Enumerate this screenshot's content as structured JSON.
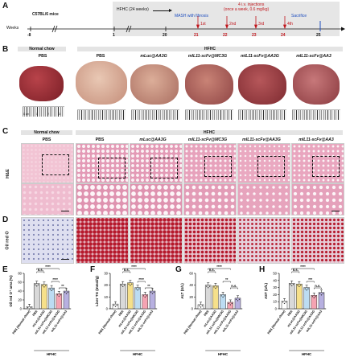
{
  "panels": {
    "a": "A",
    "b": "B",
    "c": "C",
    "d": "D",
    "e": "E",
    "f": "F",
    "g": "G",
    "h": "H"
  },
  "timeline": {
    "weeks_label": "Weeks",
    "strain": "C57BL/6 mice",
    "hfhc": "HFHC (24 weeks)",
    "injection_title": "4 i.v. injections",
    "injection_sub": "(once a week, 0.6 mg/kg)",
    "mash": "MASH with fibrosis",
    "sacrifice": "Sacrifice",
    "ticks": [
      "-8",
      "1",
      "20",
      "21",
      "22",
      "23",
      "24",
      "25"
    ],
    "doses": [
      "1st",
      "2nd",
      "3rd",
      "4th"
    ]
  },
  "groups": {
    "normal_chow": "Normal chow",
    "hfhc": "HFHC",
    "pbs": "PBS",
    "mluc": "mLuc@AA3G",
    "mc3g": "mIL11-scFv@MC3G",
    "aa3g": "mIL11-scFv@AA3G",
    "aa3": "mIL11-scFv@AA3"
  },
  "rows": {
    "he": "H&E",
    "oro": "Oil red O"
  },
  "ruler": {
    "units": [
      "0 cm",
      "1",
      "2",
      "3"
    ]
  },
  "colors": {
    "accent_red": "#c0161c",
    "accent_blue": "#1f4fbf",
    "bar_white": "#ffffff",
    "bar_gray": "#d9d9d9",
    "bar_yellow": "#f6e08a",
    "bar_lightblue": "#bcdcf2",
    "bar_pink": "#f5a3b2",
    "bar_purple": "#b7b0e0"
  },
  "chart_data": [
    {
      "type": "bar",
      "panel": "E",
      "ylabel": "Oil red O⁺ area (%)",
      "ylim": [
        0,
        80
      ],
      "yticks": [
        "0",
        "20",
        "40",
        "60",
        "80"
      ],
      "categories": [
        "PBS (Normal chow)",
        "PBS",
        "mLuc@AA3G",
        "mIL11-scFv@MC3G",
        "mIL11-scFv@AA3G",
        "mIL11-scFv@AA3"
      ],
      "values": [
        5,
        57,
        55,
        47,
        34,
        40
      ],
      "annotations": [
        "n.s.",
        "****",
        "****",
        "**"
      ],
      "group_label": "HFHC"
    },
    {
      "type": "bar",
      "panel": "F",
      "ylabel": "Liver TG (mmol/g)",
      "ylim": [
        0,
        30
      ],
      "yticks": [
        "0",
        "10",
        "20",
        "30"
      ],
      "categories": [
        "PBS (Normal chow)",
        "PBS",
        "mLuc@AA3G",
        "mIL11-scFv@MC3G",
        "mIL11-scFv@AA3G",
        "mIL11-scFv@AA3"
      ],
      "values": [
        4,
        21,
        22,
        18,
        12,
        15
      ],
      "annotations": [
        "n.s.",
        "****",
        "****",
        "**"
      ],
      "group_label": "HFHC"
    },
    {
      "type": "bar",
      "panel": "G",
      "ylabel": "ALT (U/L)",
      "ylim": [
        0,
        60
      ],
      "yticks": [
        "0",
        "20",
        "40",
        "60"
      ],
      "categories": [
        "PBS (Normal chow)",
        "PBS",
        "mLuc@AA3G",
        "mIL11-scFv@MC3G",
        "mIL11-scFv@AA3G",
        "mIL11-scFv@AA3"
      ],
      "values": [
        7,
        40,
        39,
        24,
        11,
        18
      ],
      "annotations": [
        "n.s.",
        "****",
        "**",
        "n.s."
      ],
      "group_label": "HFHC"
    },
    {
      "type": "bar",
      "panel": "H",
      "ylabel": "AST (U/L)",
      "ylim": [
        0,
        50
      ],
      "yticks": [
        "0",
        "10",
        "20",
        "30",
        "40",
        "50"
      ],
      "categories": [
        "PBS (Normal chow)",
        "PBS",
        "mLuc@AA3G",
        "mIL11-scFv@MC3G",
        "mIL11-scFv@AA3G",
        "mIL11-scFv@AA3"
      ],
      "values": [
        11,
        36,
        35,
        30,
        19,
        23
      ],
      "annotations": [
        "n.s.",
        "****",
        "***",
        "n.s."
      ],
      "group_label": "HFHC"
    }
  ]
}
